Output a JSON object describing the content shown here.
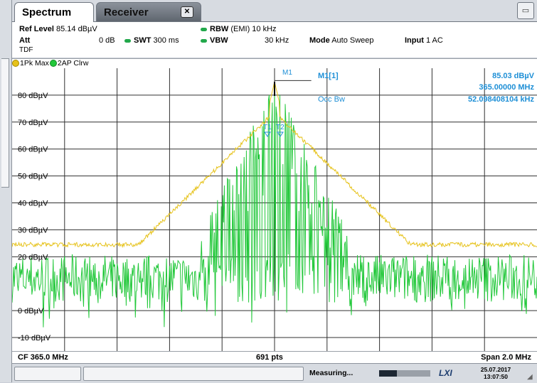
{
  "tabs": [
    {
      "label": "Spectrum",
      "active": true
    },
    {
      "label": "Receiver",
      "active": false,
      "close_icon": "close-icon"
    }
  ],
  "params": {
    "ref_level_label": "Ref Level",
    "ref_level_value": "85.14 dBµV",
    "att_label": "Att",
    "att_value": "0 dB",
    "tdf_label": "TDF",
    "swt_label": "SWT",
    "swt_value": "300 ms",
    "rbw_label": "RBW",
    "rbw_value": "(EMI) 10 kHz",
    "vbw_label": "VBW",
    "vbw_value": "30 kHz",
    "mode_label": "Mode",
    "mode_value": "Auto Sweep",
    "input_label": "Input",
    "input_value": "1 AC"
  },
  "traces_legend": {
    "trace1": "1Pk Max",
    "trace2": "2AP Clrw",
    "trace1_color": "#e6c21a",
    "trace2_color": "#22c83a"
  },
  "markers": {
    "m1_label": "M1",
    "m1_readout_label": "M1[1]",
    "m1_level": "85.03 dBµV",
    "m1_freq": "365.00000 MHz",
    "occbw_label": "Occ Bw",
    "occbw_value": "52.098408104 kHz",
    "t1_label": "T1",
    "t2_label": "T2",
    "readout_color": "#1e8fd6"
  },
  "footer": {
    "center_freq": "CF 365.0 MHz",
    "points": "691 pts",
    "span": "Span 2.0 MHz"
  },
  "status": {
    "measuring": "Measuring...",
    "progress": 0.35,
    "lxi_logo": "LXI",
    "date": "25.07.2017",
    "time": "13:07:50"
  },
  "chart_data": {
    "type": "line",
    "xlabel": "",
    "ylabel": "",
    "x_range_mhz": [
      364.0,
      366.0
    ],
    "ylim": [
      -15,
      90
    ],
    "y_ticks": [
      {
        "value": 80,
        "label": "80 dBµV"
      },
      {
        "value": 70,
        "label": "70 dBµV"
      },
      {
        "value": 60,
        "label": "60 dBµV"
      },
      {
        "value": 50,
        "label": "50 dBµV"
      },
      {
        "value": 40,
        "label": "40 dBµV"
      },
      {
        "value": 30,
        "label": "30 dBµV"
      },
      {
        "value": 20,
        "label": "20 dBµV"
      },
      {
        "value": 0,
        "label": "0 dBµV"
      },
      {
        "value": -10,
        "label": "-10 dBµV"
      }
    ],
    "grid": true,
    "series": [
      {
        "name": "1Pk Max",
        "envelope": {
          "peak_freq_mhz": 365.0,
          "peak_level": 85.0,
          "floor_level": 24.5,
          "shoulder_level": 62
        }
      },
      {
        "name": "2AP Clrw",
        "envelope": {
          "peak_freq_mhz": 365.0,
          "peak_level": 85.0,
          "noise_mean": 12,
          "noise_spread": 9
        }
      }
    ],
    "ref_line_level": 85.14
  }
}
